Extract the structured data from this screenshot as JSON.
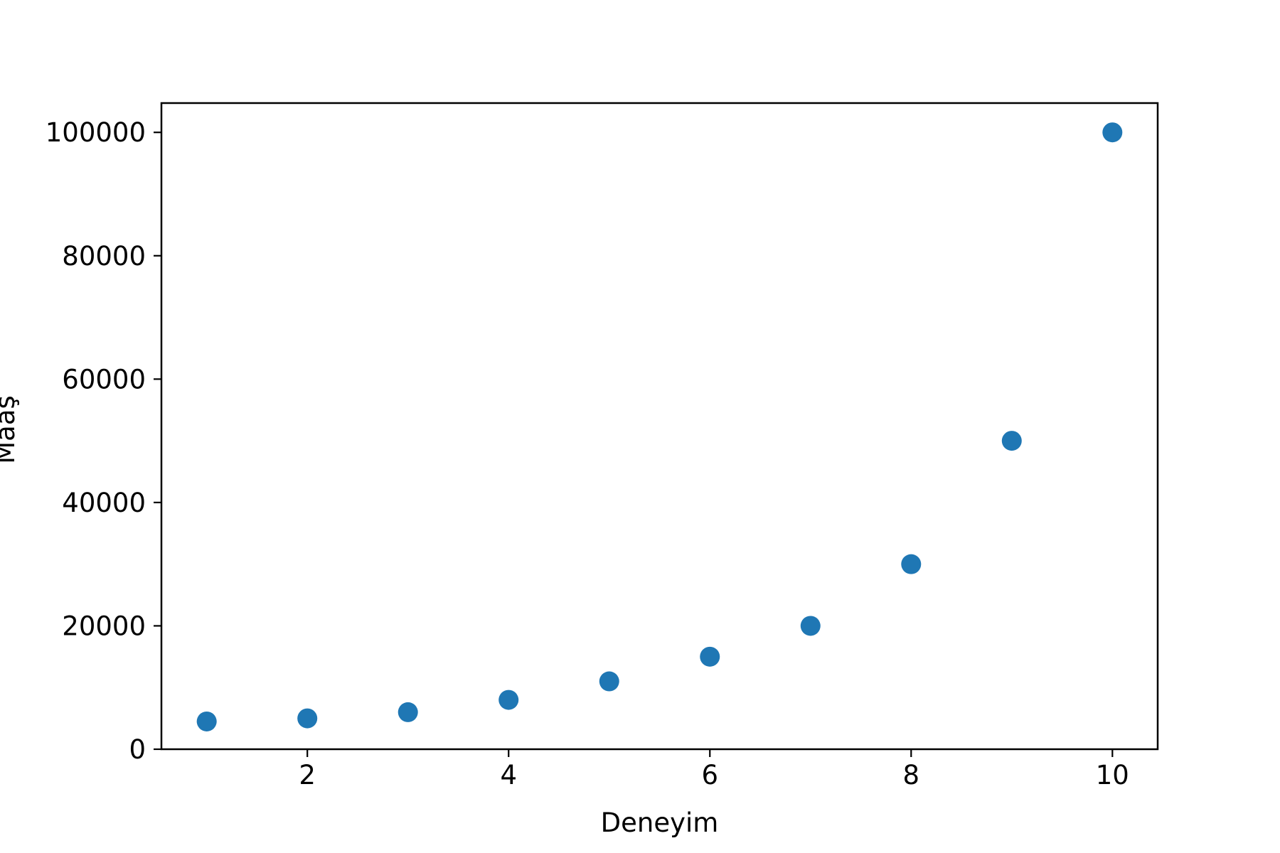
{
  "chart_data": {
    "type": "scatter",
    "title": "",
    "xlabel": "Deneyim",
    "ylabel": "Maaş",
    "x": [
      1,
      2,
      3,
      4,
      5,
      6,
      7,
      8,
      9,
      10
    ],
    "y": [
      4500,
      5000,
      6000,
      8000,
      11000,
      15000,
      20000,
      30000,
      50000,
      100000
    ],
    "xlim": [
      0.55,
      10.45
    ],
    "ylim": [
      0,
      104750
    ],
    "xticks": [
      2,
      4,
      6,
      8,
      10
    ],
    "yticks": [
      0,
      20000,
      40000,
      60000,
      80000,
      100000
    ],
    "grid": false,
    "point_color": "#1f77b4"
  }
}
